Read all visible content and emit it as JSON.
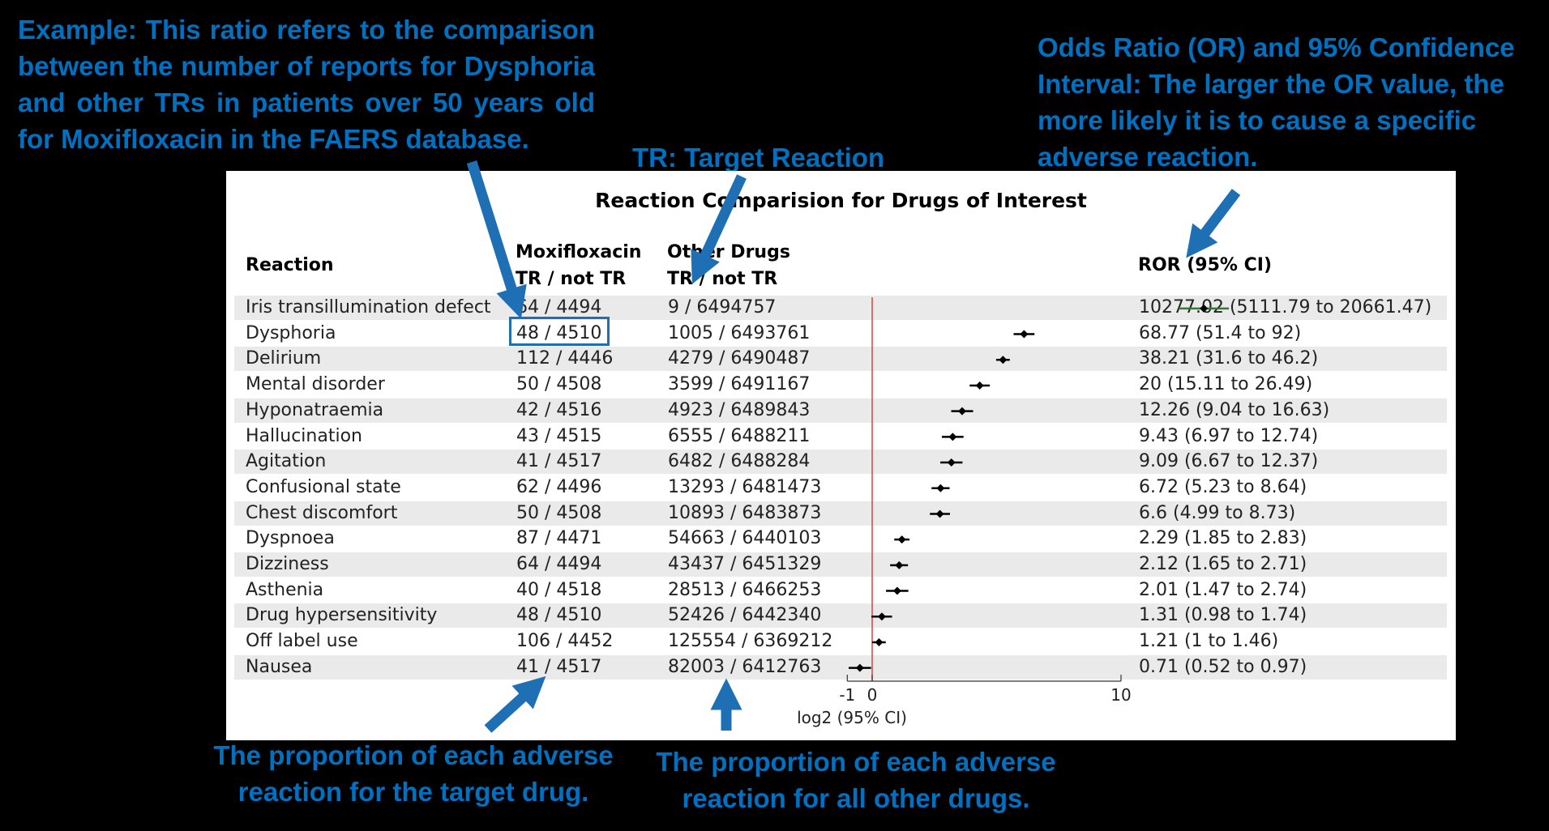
{
  "annotations": {
    "example": "Example: This ratio refers to the comparison between the number of reports for Dysphoria and other TRs in patients over 50 years old for Moxifloxacin in the FAERS database.",
    "odds_ratio": "Odds Ratio (OR) and 95% Confidence Interval: The larger the OR value, the more likely it is to cause a specific adverse reaction.",
    "tr_definition": "TR: Target Reaction",
    "target_drug_proportion": "The proportion of each adverse reaction for the target drug.",
    "other_drugs_proportion": "The proportion of each adverse reaction for all other drugs."
  },
  "colors": {
    "annotation": "#0070C0",
    "null_line": "#e04040",
    "first_row_ci": "#2e7d32"
  },
  "chart_data": {
    "type": "forest",
    "title": "Reaction Comparision for Drugs of Interest",
    "headers": {
      "reaction": "Reaction",
      "drug": "Moxifloxacin",
      "drug_sub": "TR / not TR",
      "other": "Other Drugs",
      "other_sub": "TR / not TR",
      "ror": "ROR (95% CI)"
    },
    "xlabel": "log2 (95% CI)",
    "xticks": [
      "-1",
      "0",
      "10"
    ],
    "xlim": [
      -1,
      10
    ],
    "rows": [
      {
        "reaction": "Iris transillumination defect",
        "drug": "64 / 4494",
        "other": "9 / 6494757",
        "ror_text": "10277.02 (5111.79 to 20661.47)",
        "ror": 10277.02,
        "lo": 5111.79,
        "hi": 20661.47
      },
      {
        "reaction": "Dysphoria",
        "drug": "48 / 4510",
        "other": "1005 / 6493761",
        "ror_text": "68.77 (51.4 to 92)",
        "ror": 68.77,
        "lo": 51.4,
        "hi": 92
      },
      {
        "reaction": "Delirium",
        "drug": "112 / 4446",
        "other": "4279 / 6490487",
        "ror_text": "38.21 (31.6 to 46.2)",
        "ror": 38.21,
        "lo": 31.6,
        "hi": 46.2
      },
      {
        "reaction": "Mental disorder",
        "drug": "50 / 4508",
        "other": "3599 / 6491167",
        "ror_text": "20 (15.11 to 26.49)",
        "ror": 20,
        "lo": 15.11,
        "hi": 26.49
      },
      {
        "reaction": "Hyponatraemia",
        "drug": "42 / 4516",
        "other": "4923 / 6489843",
        "ror_text": "12.26 (9.04 to 16.63)",
        "ror": 12.26,
        "lo": 9.04,
        "hi": 16.63
      },
      {
        "reaction": "Hallucination",
        "drug": "43 / 4515",
        "other": "6555 / 6488211",
        "ror_text": "9.43 (6.97 to 12.74)",
        "ror": 9.43,
        "lo": 6.97,
        "hi": 12.74
      },
      {
        "reaction": "Agitation",
        "drug": "41 / 4517",
        "other": "6482 / 6488284",
        "ror_text": "9.09 (6.67 to 12.37)",
        "ror": 9.09,
        "lo": 6.67,
        "hi": 12.37
      },
      {
        "reaction": "Confusional state",
        "drug": "62 / 4496",
        "other": "13293 / 6481473",
        "ror_text": "6.72 (5.23 to 8.64)",
        "ror": 6.72,
        "lo": 5.23,
        "hi": 8.64
      },
      {
        "reaction": "Chest discomfort",
        "drug": "50 / 4508",
        "other": "10893 / 6483873",
        "ror_text": "6.6 (4.99 to 8.73)",
        "ror": 6.6,
        "lo": 4.99,
        "hi": 8.73
      },
      {
        "reaction": "Dyspnoea",
        "drug": "87 / 4471",
        "other": "54663 / 6440103",
        "ror_text": "2.29 (1.85 to 2.83)",
        "ror": 2.29,
        "lo": 1.85,
        "hi": 2.83
      },
      {
        "reaction": "Dizziness",
        "drug": "64 / 4494",
        "other": "43437 / 6451329",
        "ror_text": "2.12 (1.65 to 2.71)",
        "ror": 2.12,
        "lo": 1.65,
        "hi": 2.71
      },
      {
        "reaction": "Asthenia",
        "drug": "40 / 4518",
        "other": "28513 / 6466253",
        "ror_text": "2.01 (1.47 to 2.74)",
        "ror": 2.01,
        "lo": 1.47,
        "hi": 2.74
      },
      {
        "reaction": "Drug hypersensitivity",
        "drug": "48 / 4510",
        "other": "52426 / 6442340",
        "ror_text": "1.31 (0.98 to 1.74)",
        "ror": 1.31,
        "lo": 0.98,
        "hi": 1.74
      },
      {
        "reaction": "Off label use",
        "drug": "106 / 4452",
        "other": "125554 / 6369212",
        "ror_text": "1.21 (1 to 1.46)",
        "ror": 1.21,
        "lo": 1,
        "hi": 1.46
      },
      {
        "reaction": "Nausea",
        "drug": "41 / 4517",
        "other": "82003 / 6412763",
        "ror_text": "0.71 (0.52 to 0.97)",
        "ror": 0.71,
        "lo": 0.52,
        "hi": 0.97
      }
    ]
  }
}
